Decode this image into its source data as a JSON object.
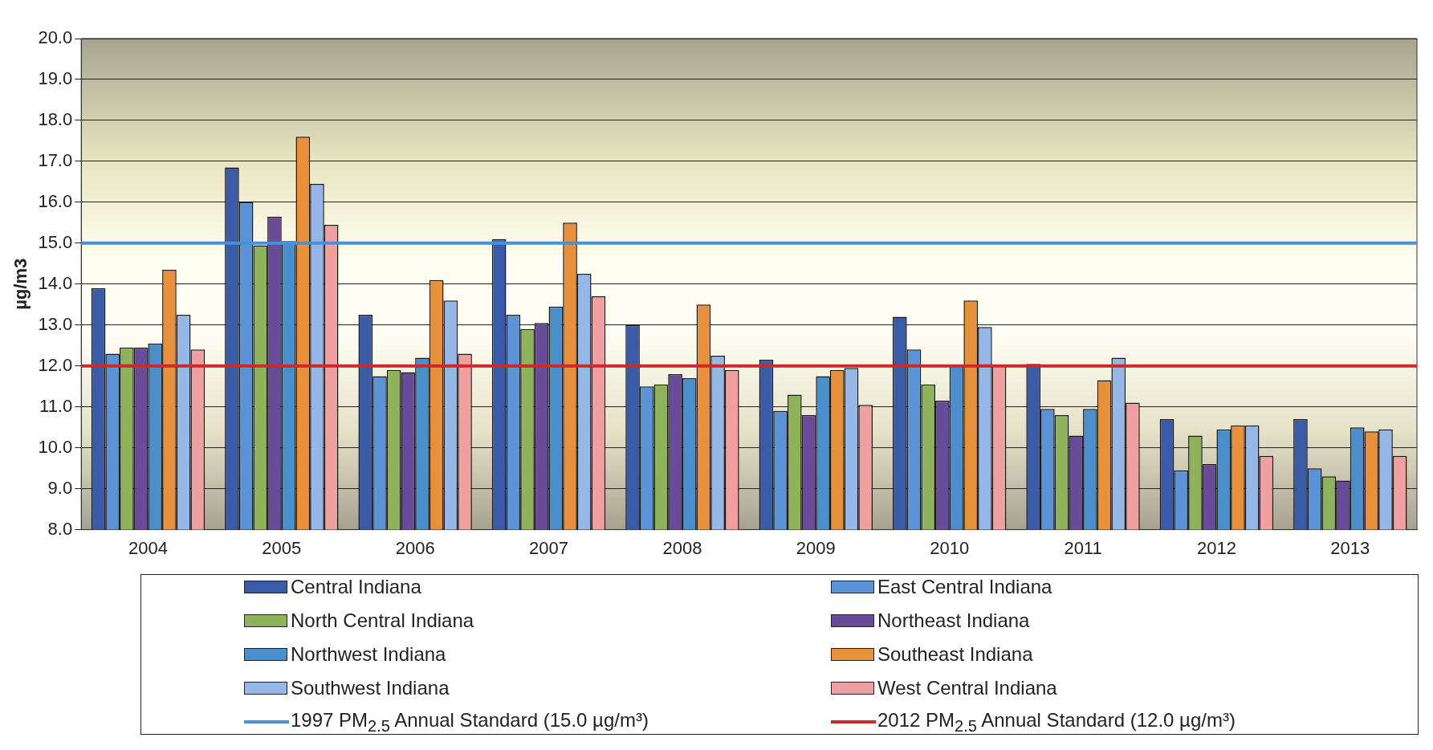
{
  "chart_data": {
    "type": "bar",
    "ylabel": "µg/m3",
    "categories": [
      "2004",
      "2005",
      "2006",
      "2007",
      "2008",
      "2009",
      "2010",
      "2011",
      "2012",
      "2013"
    ],
    "series": [
      {
        "name": "Central Indiana",
        "color": "#3a5ba8",
        "values": [
          13.9,
          16.85,
          13.25,
          15.1,
          13.0,
          12.15,
          13.2,
          12.05,
          10.7,
          10.7
        ]
      },
      {
        "name": "East Central Indiana",
        "color": "#5b93d8",
        "values": [
          12.3,
          16.0,
          11.75,
          13.25,
          11.5,
          10.9,
          12.4,
          10.95,
          9.45,
          9.5
        ]
      },
      {
        "name": "North Central Indiana",
        "color": "#8fb35a",
        "values": [
          12.45,
          14.95,
          11.9,
          12.9,
          11.55,
          11.3,
          11.55,
          10.8,
          10.3,
          9.3
        ]
      },
      {
        "name": "Northeast Indiana",
        "color": "#6a4a9a",
        "values": [
          12.45,
          15.65,
          11.85,
          13.05,
          11.8,
          10.8,
          11.15,
          10.3,
          9.6,
          9.2
        ]
      },
      {
        "name": "Northwest Indiana",
        "color": "#4a8fcc",
        "values": [
          12.55,
          15.05,
          12.2,
          13.45,
          11.7,
          11.75,
          12.0,
          10.95,
          10.45,
          10.5
        ]
      },
      {
        "name": "Southeast Indiana",
        "color": "#e8903a",
        "values": [
          14.35,
          17.6,
          14.1,
          15.5,
          13.5,
          11.9,
          13.6,
          11.65,
          10.55,
          10.4
        ]
      },
      {
        "name": "Southwest Indiana",
        "color": "#95b8e8",
        "values": [
          13.25,
          16.45,
          13.6,
          14.25,
          12.25,
          11.95,
          12.95,
          12.2,
          10.55,
          10.45
        ]
      },
      {
        "name": "West Central Indiana",
        "color": "#f0a0a0",
        "values": [
          12.4,
          15.45,
          12.3,
          13.7,
          11.9,
          11.05,
          12.0,
          11.1,
          9.8,
          9.8
        ]
      }
    ],
    "ref_lines": [
      {
        "axis": "y",
        "value": 15.0,
        "label": "1997 PM$_{2.5}$ Annual Standard (15.0 µg/m³)",
        "color": "#4a90d9"
      },
      {
        "axis": "y",
        "value": 12.0,
        "label": "2012 PM$_{2.5}$ Annual Standard (12.0 µg/m³)",
        "color": "#d02828"
      }
    ],
    "ylim": [
      8.0,
      20.0
    ],
    "yticks": [
      {
        "value": 8,
        "label": "8.0"
      },
      {
        "value": 9,
        "label": "9.0"
      },
      {
        "value": 10,
        "label": "10.0"
      },
      {
        "value": 11,
        "label": "11.0"
      },
      {
        "value": 12,
        "label": "12.0"
      },
      {
        "value": 13,
        "label": "13.0"
      },
      {
        "value": 14,
        "label": "14.0"
      },
      {
        "value": 15,
        "label": "15.0"
      },
      {
        "value": 16,
        "label": "16.0"
      },
      {
        "value": 17,
        "label": "17.0"
      },
      {
        "value": 18,
        "label": "18.0"
      },
      {
        "value": 19,
        "label": "19.0"
      },
      {
        "value": 20,
        "label": "20.0"
      }
    ],
    "grid": "y",
    "legend": "bottom"
  }
}
